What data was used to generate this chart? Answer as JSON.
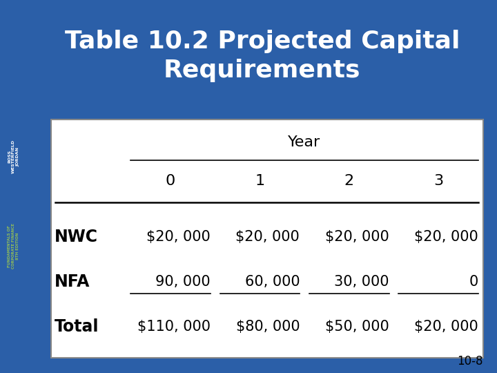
{
  "title": "Table 10.2 Projected Capital\nRequirements",
  "title_color": "#FFFFFF",
  "bg_color": "#2B5FA8",
  "table_bg": "#FFFFFF",
  "header_label": "Year",
  "col_headers": [
    "0",
    "1",
    "2",
    "3"
  ],
  "row_labels": [
    "NWC",
    "NFA",
    "Total"
  ],
  "nwc_values": [
    "$20, 000",
    "$20, 000",
    "$20, 000",
    "$20, 000"
  ],
  "nfa_values": [
    "90, 000",
    "60, 000",
    "30, 000",
    "0"
  ],
  "total_values": [
    "$110, 000",
    "$80, 000",
    "$50, 000",
    "$20, 000"
  ],
  "slide_label": "10-8",
  "left_bar_color": "#1A3A6B",
  "side_label_color": "#8FBC5A"
}
